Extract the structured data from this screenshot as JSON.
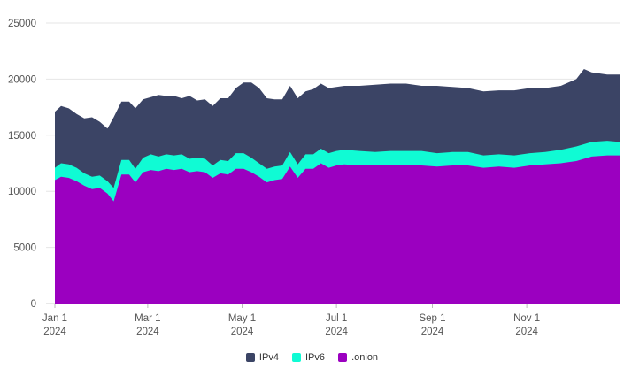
{
  "chart_data": {
    "type": "area",
    "stacked": true,
    "x_start": "2024-01-01",
    "x_end": "2024-12-31",
    "ylim": [
      0,
      25000
    ],
    "y_ticks": [
      0,
      5000,
      10000,
      15000,
      20000,
      25000
    ],
    "y_tick_labels": [
      "0",
      "5000",
      "10000",
      "15000",
      "20000",
      "25000"
    ],
    "x_ticks": [
      {
        "date": "2024-01-01",
        "label1": "Jan 1",
        "label2": "2024"
      },
      {
        "date": "2024-03-01",
        "label1": "Mar 1",
        "label2": "2024"
      },
      {
        "date": "2024-05-01",
        "label1": "May 1",
        "label2": "2024"
      },
      {
        "date": "2024-07-01",
        "label1": "Jul 1",
        "label2": "2024"
      },
      {
        "date": "2024-09-01",
        "label1": "Sep 1",
        "label2": "2024"
      },
      {
        "date": "2024-11-01",
        "label1": "Nov 1",
        "label2": "2024"
      }
    ],
    "grid": true,
    "legend_position": "bottom",
    "series": [
      {
        "name": ".onion",
        "color": "#9b00c0",
        "points": [
          [
            "2024-01-01",
            11000
          ],
          [
            "2024-01-05",
            11300
          ],
          [
            "2024-01-10",
            11200
          ],
          [
            "2024-01-15",
            10900
          ],
          [
            "2024-01-20",
            10500
          ],
          [
            "2024-01-25",
            10200
          ],
          [
            "2024-01-30",
            10300
          ],
          [
            "2024-02-04",
            9800
          ],
          [
            "2024-02-08",
            9100
          ],
          [
            "2024-02-13",
            11500
          ],
          [
            "2024-02-18",
            11500
          ],
          [
            "2024-02-22",
            10800
          ],
          [
            "2024-02-27",
            11700
          ],
          [
            "2024-03-03",
            11900
          ],
          [
            "2024-03-08",
            11800
          ],
          [
            "2024-03-13",
            12000
          ],
          [
            "2024-03-18",
            11900
          ],
          [
            "2024-03-23",
            12000
          ],
          [
            "2024-03-28",
            11700
          ],
          [
            "2024-04-02",
            11800
          ],
          [
            "2024-04-07",
            11700
          ],
          [
            "2024-04-12",
            11200
          ],
          [
            "2024-04-17",
            11600
          ],
          [
            "2024-04-22",
            11500
          ],
          [
            "2024-04-27",
            12000
          ],
          [
            "2024-05-02",
            12000
          ],
          [
            "2024-05-07",
            11700
          ],
          [
            "2024-05-12",
            11300
          ],
          [
            "2024-05-17",
            10800
          ],
          [
            "2024-05-22",
            11000
          ],
          [
            "2024-05-27",
            11100
          ],
          [
            "2024-06-01",
            12200
          ],
          [
            "2024-06-06",
            11200
          ],
          [
            "2024-06-11",
            12000
          ],
          [
            "2024-06-16",
            12000
          ],
          [
            "2024-06-21",
            12500
          ],
          [
            "2024-06-26",
            12100
          ],
          [
            "2024-07-01",
            12300
          ],
          [
            "2024-07-06",
            12400
          ],
          [
            "2024-07-16",
            12300
          ],
          [
            "2024-07-26",
            12300
          ],
          [
            "2024-08-05",
            12300
          ],
          [
            "2024-08-15",
            12300
          ],
          [
            "2024-08-25",
            12300
          ],
          [
            "2024-09-04",
            12200
          ],
          [
            "2024-09-14",
            12300
          ],
          [
            "2024-09-24",
            12300
          ],
          [
            "2024-10-04",
            12100
          ],
          [
            "2024-10-14",
            12200
          ],
          [
            "2024-10-24",
            12100
          ],
          [
            "2024-11-03",
            12300
          ],
          [
            "2024-11-13",
            12400
          ],
          [
            "2024-11-23",
            12500
          ],
          [
            "2024-12-03",
            12700
          ],
          [
            "2024-12-13",
            13100
          ],
          [
            "2024-12-23",
            13200
          ],
          [
            "2024-12-31",
            13200
          ]
        ]
      },
      {
        "name": "IPv6",
        "color": "#10fbd4",
        "points": [
          [
            "2024-01-01",
            12100
          ],
          [
            "2024-01-05",
            12500
          ],
          [
            "2024-01-10",
            12400
          ],
          [
            "2024-01-15",
            12100
          ],
          [
            "2024-01-20",
            11600
          ],
          [
            "2024-01-25",
            11300
          ],
          [
            "2024-01-30",
            11400
          ],
          [
            "2024-02-04",
            10900
          ],
          [
            "2024-02-08",
            10300
          ],
          [
            "2024-02-13",
            12800
          ],
          [
            "2024-02-18",
            12800
          ],
          [
            "2024-02-22",
            12000
          ],
          [
            "2024-02-27",
            13000
          ],
          [
            "2024-03-03",
            13300
          ],
          [
            "2024-03-08",
            13100
          ],
          [
            "2024-03-13",
            13300
          ],
          [
            "2024-03-18",
            13200
          ],
          [
            "2024-03-23",
            13300
          ],
          [
            "2024-03-28",
            12900
          ],
          [
            "2024-04-02",
            13000
          ],
          [
            "2024-04-07",
            12900
          ],
          [
            "2024-04-12",
            12300
          ],
          [
            "2024-04-17",
            12800
          ],
          [
            "2024-04-22",
            12700
          ],
          [
            "2024-04-27",
            13400
          ],
          [
            "2024-05-02",
            13400
          ],
          [
            "2024-05-07",
            13000
          ],
          [
            "2024-05-12",
            12500
          ],
          [
            "2024-05-17",
            12000
          ],
          [
            "2024-05-22",
            12200
          ],
          [
            "2024-05-27",
            12300
          ],
          [
            "2024-06-01",
            13500
          ],
          [
            "2024-06-06",
            12400
          ],
          [
            "2024-06-11",
            13300
          ],
          [
            "2024-06-16",
            13300
          ],
          [
            "2024-06-21",
            13800
          ],
          [
            "2024-06-26",
            13400
          ],
          [
            "2024-07-01",
            13600
          ],
          [
            "2024-07-06",
            13700
          ],
          [
            "2024-07-16",
            13600
          ],
          [
            "2024-07-26",
            13500
          ],
          [
            "2024-08-05",
            13600
          ],
          [
            "2024-08-15",
            13600
          ],
          [
            "2024-08-25",
            13600
          ],
          [
            "2024-09-04",
            13400
          ],
          [
            "2024-09-14",
            13500
          ],
          [
            "2024-09-24",
            13500
          ],
          [
            "2024-10-04",
            13200
          ],
          [
            "2024-10-14",
            13300
          ],
          [
            "2024-10-24",
            13200
          ],
          [
            "2024-11-03",
            13400
          ],
          [
            "2024-11-13",
            13500
          ],
          [
            "2024-11-23",
            13700
          ],
          [
            "2024-12-03",
            14000
          ],
          [
            "2024-12-13",
            14400
          ],
          [
            "2024-12-23",
            14500
          ],
          [
            "2024-12-31",
            14400
          ]
        ]
      },
      {
        "name": "IPv4",
        "color": "#3b4465",
        "points": [
          [
            "2024-01-01",
            17100
          ],
          [
            "2024-01-05",
            17600
          ],
          [
            "2024-01-10",
            17400
          ],
          [
            "2024-01-15",
            16900
          ],
          [
            "2024-01-20",
            16500
          ],
          [
            "2024-01-25",
            16600
          ],
          [
            "2024-01-30",
            16200
          ],
          [
            "2024-02-04",
            15600
          ],
          [
            "2024-02-08",
            16600
          ],
          [
            "2024-02-13",
            18000
          ],
          [
            "2024-02-18",
            18000
          ],
          [
            "2024-02-22",
            17400
          ],
          [
            "2024-02-27",
            18200
          ],
          [
            "2024-03-03",
            18400
          ],
          [
            "2024-03-08",
            18600
          ],
          [
            "2024-03-13",
            18500
          ],
          [
            "2024-03-18",
            18500
          ],
          [
            "2024-03-23",
            18300
          ],
          [
            "2024-03-28",
            18500
          ],
          [
            "2024-04-02",
            18100
          ],
          [
            "2024-04-07",
            18200
          ],
          [
            "2024-04-12",
            17600
          ],
          [
            "2024-04-17",
            18300
          ],
          [
            "2024-04-22",
            18300
          ],
          [
            "2024-04-27",
            19200
          ],
          [
            "2024-05-02",
            19700
          ],
          [
            "2024-05-07",
            19700
          ],
          [
            "2024-05-12",
            19200
          ],
          [
            "2024-05-17",
            18300
          ],
          [
            "2024-05-22",
            18200
          ],
          [
            "2024-05-27",
            18200
          ],
          [
            "2024-06-01",
            19400
          ],
          [
            "2024-06-06",
            18300
          ],
          [
            "2024-06-11",
            18900
          ],
          [
            "2024-06-16",
            19100
          ],
          [
            "2024-06-21",
            19600
          ],
          [
            "2024-06-26",
            19200
          ],
          [
            "2024-07-01",
            19300
          ],
          [
            "2024-07-06",
            19400
          ],
          [
            "2024-07-16",
            19400
          ],
          [
            "2024-07-26",
            19500
          ],
          [
            "2024-08-05",
            19600
          ],
          [
            "2024-08-15",
            19600
          ],
          [
            "2024-08-25",
            19400
          ],
          [
            "2024-09-04",
            19400
          ],
          [
            "2024-09-14",
            19300
          ],
          [
            "2024-09-24",
            19200
          ],
          [
            "2024-10-04",
            18900
          ],
          [
            "2024-10-14",
            19000
          ],
          [
            "2024-10-24",
            19000
          ],
          [
            "2024-11-03",
            19200
          ],
          [
            "2024-11-13",
            19200
          ],
          [
            "2024-11-23",
            19400
          ],
          [
            "2024-12-03",
            20000
          ],
          [
            "2024-12-08",
            20900
          ],
          [
            "2024-12-13",
            20600
          ],
          [
            "2024-12-23",
            20400
          ],
          [
            "2024-12-31",
            20400
          ]
        ]
      }
    ]
  },
  "legend": {
    "items": [
      {
        "label": "IPv4",
        "color": "#3b4465"
      },
      {
        "label": "IPv6",
        "color": "#10fbd4"
      },
      {
        "label": ".onion",
        "color": "#9b00c0"
      }
    ]
  }
}
